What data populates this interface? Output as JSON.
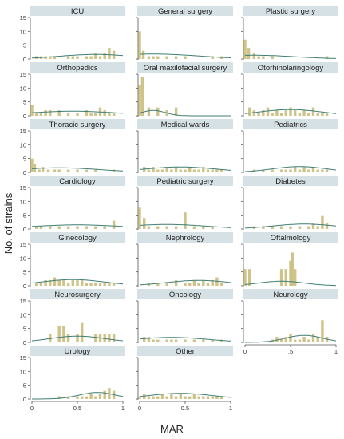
{
  "figure": {
    "ylabel": "No. of strains",
    "xlabel": "MAR",
    "colors": {
      "bar": "#c9bc7c",
      "curve": "#3f7d73",
      "header_bg": "#d6e1e6",
      "axis": "#555555"
    }
  },
  "chart_data": [
    {
      "type": "bar",
      "title": "ICU",
      "x": [
        0.05,
        0.1,
        0.15,
        0.2,
        0.25,
        0.3,
        0.35,
        0.4,
        0.45,
        0.5,
        0.55,
        0.6,
        0.65,
        0.7,
        0.75,
        0.8,
        0.85,
        0.9
      ],
      "values": [
        1,
        1,
        1,
        1,
        1,
        0,
        0,
        1,
        1,
        1,
        0,
        1,
        1,
        2,
        1,
        2,
        4,
        3
      ],
      "xlim": [
        0,
        1
      ],
      "ylim": [
        0,
        15
      ],
      "ticks": [
        0,
        5,
        10,
        15
      ],
      "curve": {
        "mean": 0.7,
        "sd": 0.4,
        "scale": 0.55
      }
    },
    {
      "type": "bar",
      "title": "General surgery",
      "x": [
        0,
        0.04,
        0.1,
        0.15,
        0.2,
        0.3,
        0.4,
        0.5,
        0.6,
        0.7,
        0.8,
        0.9
      ],
      "values": [
        10,
        3,
        1,
        1,
        1,
        1,
        1,
        1,
        0,
        0,
        1,
        1
      ],
      "xlim": [
        0,
        1
      ],
      "ylim": [
        0,
        15
      ],
      "ticks": [
        0,
        5,
        10,
        15
      ],
      "curve": {
        "mean": 0.15,
        "sd": 0.5,
        "scale": 0.6
      }
    },
    {
      "type": "bar",
      "title": "Plastic surgery",
      "x": [
        0,
        0.04,
        0.1,
        0.15,
        0.2,
        0.3,
        0.5,
        0.7,
        0.9
      ],
      "values": [
        7,
        4,
        2,
        1,
        1,
        1,
        0,
        0,
        1
      ],
      "xlim": [
        0,
        1
      ],
      "ylim": [
        0,
        15
      ],
      "ticks": [
        0,
        5,
        10,
        15
      ],
      "curve": {
        "mean": 0.1,
        "sd": 0.45,
        "scale": 0.45
      }
    },
    {
      "type": "bar",
      "title": "Orthopedics",
      "x": [
        0,
        0.05,
        0.1,
        0.15,
        0.2,
        0.3,
        0.4,
        0.5,
        0.6,
        0.65,
        0.7,
        0.75,
        0.8,
        0.85,
        0.9
      ],
      "values": [
        4,
        1,
        1,
        2,
        2,
        2,
        1,
        1,
        2,
        1,
        1,
        3,
        2,
        1,
        1
      ],
      "xlim": [
        0,
        1
      ],
      "ylim": [
        0,
        15
      ],
      "ticks": [
        0,
        5,
        10,
        15
      ],
      "curve": {
        "mean": 0.45,
        "sd": 0.5,
        "scale": 0.55
      }
    },
    {
      "type": "bar",
      "title": "Oral maxilofacial surgery",
      "x": [
        0,
        0.03,
        0.1,
        0.2,
        0.3,
        0.4,
        0.5
      ],
      "values": [
        11,
        14,
        3,
        3,
        2,
        3,
        0
      ],
      "xlim": [
        0,
        1
      ],
      "ylim": [
        0,
        15
      ],
      "ticks": [
        0,
        5,
        10,
        15
      ],
      "curve": {
        "mean": 0.15,
        "sd": 0.13,
        "scale": 0.65
      }
    },
    {
      "type": "bar",
      "title": "Otorhinolaringology",
      "x": [
        0.05,
        0.1,
        0.15,
        0.2,
        0.25,
        0.3,
        0.35,
        0.4,
        0.45,
        0.5,
        0.55,
        0.6,
        0.65,
        0.7,
        0.75,
        0.8,
        0.85,
        0.9
      ],
      "values": [
        3,
        2,
        1,
        2,
        3,
        1,
        2,
        1,
        2,
        3,
        2,
        1,
        2,
        1,
        3,
        1,
        1,
        1
      ],
      "xlim": [
        0,
        1
      ],
      "ylim": [
        0,
        15
      ],
      "ticks": [
        0,
        5,
        10,
        15
      ],
      "curve": {
        "mean": 0.5,
        "sd": 0.35,
        "scale": 0.75
      }
    },
    {
      "type": "bar",
      "title": "Thoracic surgery",
      "x": [
        0,
        0.03,
        0.08,
        0.12,
        0.18,
        0.25,
        0.3,
        0.4,
        0.5,
        0.6,
        0.7,
        0.8,
        0.9
      ],
      "values": [
        5,
        3,
        1,
        2,
        1,
        1,
        1,
        1,
        1,
        1,
        1,
        0,
        1
      ],
      "xlim": [
        0,
        1
      ],
      "ylim": [
        0,
        15
      ],
      "ticks": [
        0,
        5,
        10,
        15
      ],
      "curve": {
        "mean": 0.3,
        "sd": 0.45,
        "scale": 0.55
      }
    },
    {
      "type": "bar",
      "title": "Medical wards",
      "x": [
        0.05,
        0.1,
        0.15,
        0.2,
        0.25,
        0.3,
        0.35,
        0.4,
        0.45,
        0.5,
        0.55,
        0.6,
        0.65,
        0.7,
        0.75,
        0.8,
        0.85,
        0.9
      ],
      "values": [
        2,
        1,
        2,
        1,
        1,
        2,
        1,
        2,
        1,
        1,
        2,
        1,
        1,
        2,
        1,
        1,
        1,
        1
      ],
      "xlim": [
        0,
        1
      ],
      "ylim": [
        0,
        15
      ],
      "ticks": [
        0,
        5,
        10,
        15
      ],
      "curve": {
        "mean": 0.45,
        "sd": 0.4,
        "scale": 0.65
      }
    },
    {
      "type": "bar",
      "title": "Pediatrics",
      "x": [
        0.1,
        0.2,
        0.3,
        0.4,
        0.45,
        0.5,
        0.55,
        0.6,
        0.65,
        0.7,
        0.75,
        0.8,
        0.85,
        0.9
      ],
      "values": [
        1,
        1,
        1,
        1,
        1,
        1,
        2,
        1,
        2,
        1,
        2,
        1,
        1,
        1
      ],
      "xlim": [
        0,
        1
      ],
      "ylim": [
        0,
        15
      ],
      "ticks": [
        0,
        5,
        10,
        15
      ],
      "curve": {
        "mean": 0.6,
        "sd": 0.3,
        "scale": 0.7
      }
    },
    {
      "type": "bar",
      "title": "Cardiology",
      "x": [
        0.05,
        0.1,
        0.2,
        0.3,
        0.4,
        0.5,
        0.6,
        0.7,
        0.8,
        0.9
      ],
      "values": [
        1,
        1,
        1,
        1,
        1,
        1,
        1,
        1,
        1,
        3
      ],
      "xlim": [
        0,
        1
      ],
      "ylim": [
        0,
        15
      ],
      "ticks": [
        0,
        5,
        10,
        15
      ],
      "curve": {
        "mean": 0.5,
        "sd": 0.5,
        "scale": 0.5
      }
    },
    {
      "type": "bar",
      "title": "Pediatric surgery",
      "x": [
        0,
        0.05,
        0.1,
        0.2,
        0.3,
        0.4,
        0.5,
        0.6,
        0.7,
        0.8
      ],
      "values": [
        8,
        4,
        1,
        1,
        1,
        1,
        6,
        1,
        1,
        1
      ],
      "xlim": [
        0,
        1
      ],
      "ylim": [
        0,
        15
      ],
      "ticks": [
        0,
        5,
        10,
        15
      ],
      "curve": {
        "mean": 0.3,
        "sd": 0.45,
        "scale": 0.55
      }
    },
    {
      "type": "bar",
      "title": "Diabetes",
      "x": [
        0.1,
        0.2,
        0.3,
        0.4,
        0.5,
        0.6,
        0.7,
        0.75,
        0.8,
        0.85,
        0.9
      ],
      "values": [
        1,
        1,
        1,
        1,
        1,
        1,
        1,
        2,
        1,
        5,
        2
      ],
      "xlim": [
        0,
        1
      ],
      "ylim": [
        0,
        15
      ],
      "ticks": [
        0,
        5,
        10,
        15
      ],
      "curve": {
        "mean": 0.65,
        "sd": 0.35,
        "scale": 0.6
      }
    },
    {
      "type": "bar",
      "title": "Ginecology",
      "x": [
        0.05,
        0.1,
        0.15,
        0.2,
        0.25,
        0.3,
        0.35,
        0.4,
        0.45,
        0.5,
        0.55,
        0.6,
        0.65,
        0.7,
        0.75,
        0.8,
        0.85,
        0.9
      ],
      "values": [
        1,
        1,
        2,
        2,
        3,
        2,
        2,
        1,
        2,
        2,
        2,
        1,
        1,
        1,
        1,
        1,
        1,
        1
      ],
      "xlim": [
        0,
        1
      ],
      "ylim": [
        0,
        15
      ],
      "ticks": [
        0,
        5,
        10,
        15
      ],
      "curve": {
        "mean": 0.45,
        "sd": 0.35,
        "scale": 0.75
      }
    },
    {
      "type": "bar",
      "title": "Nephrology",
      "x": [
        0.1,
        0.2,
        0.3,
        0.4,
        0.5,
        0.55,
        0.6,
        0.65,
        0.7,
        0.75,
        0.8,
        0.85,
        0.9
      ],
      "values": [
        1,
        1,
        1,
        2,
        1,
        1,
        2,
        1,
        2,
        1,
        2,
        3,
        1
      ],
      "xlim": [
        0,
        1
      ],
      "ylim": [
        0,
        15
      ],
      "ticks": [
        0,
        5,
        10,
        15
      ],
      "curve": {
        "mean": 0.65,
        "sd": 0.35,
        "scale": 0.65
      }
    },
    {
      "type": "bar",
      "title": "Oftalmology",
      "x": [
        0,
        0.05,
        0.4,
        0.45,
        0.5,
        0.52,
        0.55
      ],
      "values": [
        6,
        6,
        6,
        6,
        9,
        12,
        6
      ],
      "xlim": [
        0,
        1
      ],
      "ylim": [
        0,
        15
      ],
      "ticks": [
        0,
        5,
        10,
        15
      ],
      "curve": {
        "mean": 0.4,
        "sd": 0.25,
        "scale": 0.55
      }
    },
    {
      "type": "bar",
      "title": "Neurosurgery",
      "x": [
        0.2,
        0.3,
        0.35,
        0.4,
        0.5,
        0.55,
        0.7,
        0.75,
        0.8,
        0.85,
        0.9
      ],
      "values": [
        3,
        6,
        6,
        3,
        3,
        7,
        3,
        3,
        3,
        3,
        3
      ],
      "xlim": [
        0,
        1
      ],
      "ylim": [
        0,
        15
      ],
      "ticks": [
        0,
        5,
        10,
        15
      ],
      "curve": {
        "mean": 0.5,
        "sd": 0.3,
        "scale": 0.75
      }
    },
    {
      "type": "bar",
      "title": "Oncology",
      "x": [
        0.05,
        0.1,
        0.15,
        0.2,
        0.3,
        0.35,
        0.4,
        0.5,
        0.6,
        0.7,
        0.8,
        0.9
      ],
      "values": [
        2,
        2,
        1,
        1,
        1,
        1,
        1,
        1,
        1,
        1,
        1,
        1
      ],
      "xlim": [
        0,
        1
      ],
      "ylim": [
        0,
        15
      ],
      "ticks": [
        0,
        5,
        10,
        15
      ],
      "curve": {
        "mean": 0.35,
        "sd": 0.4,
        "scale": 0.6
      }
    },
    {
      "type": "bar",
      "title": "Neurology",
      "x": [
        0.3,
        0.35,
        0.4,
        0.45,
        0.5,
        0.55,
        0.6,
        0.65,
        0.7,
        0.75,
        0.8,
        0.85,
        0.9
      ],
      "values": [
        1,
        2,
        1,
        2,
        3,
        1,
        1,
        2,
        1,
        3,
        2,
        8,
        2
      ],
      "xlim": [
        0,
        1
      ],
      "ylim": [
        0,
        15
      ],
      "ticks": [
        0,
        5,
        10,
        15
      ],
      "xticks": [
        "0",
        ".5",
        "1"
      ],
      "curve": {
        "mean": 0.65,
        "sd": 0.2,
        "scale": 0.85
      }
    },
    {
      "type": "bar",
      "title": "Urology",
      "x": [
        0.3,
        0.4,
        0.5,
        0.55,
        0.6,
        0.65,
        0.7,
        0.75,
        0.8,
        0.85,
        0.9
      ],
      "values": [
        1,
        1,
        1,
        1,
        1,
        2,
        1,
        2,
        3,
        4,
        3
      ],
      "xlim": [
        0,
        1
      ],
      "ylim": [
        0,
        15
      ],
      "ticks": [
        0,
        5,
        10,
        15
      ],
      "xticks": [
        "0",
        "0.5",
        "1"
      ],
      "curve": {
        "mean": 0.72,
        "sd": 0.2,
        "scale": 0.8
      }
    },
    {
      "type": "bar",
      "title": "Other",
      "x": [
        0,
        0.05,
        0.1,
        0.15,
        0.2,
        0.25,
        0.3,
        0.35,
        0.4,
        0.45,
        0.5,
        0.55,
        0.6,
        0.65,
        0.7,
        0.75,
        0.8,
        0.85,
        0.9
      ],
      "values": [
        1,
        2,
        1,
        1,
        1,
        2,
        1,
        2,
        1,
        2,
        1,
        1,
        2,
        1,
        1,
        1,
        1,
        1,
        1
      ],
      "xlim": [
        0,
        1
      ],
      "ylim": [
        0,
        15
      ],
      "ticks": [
        0,
        5,
        10,
        15
      ],
      "xticks": [
        "0",
        "0.5",
        "1"
      ],
      "curve": {
        "mean": 0.45,
        "sd": 0.35,
        "scale": 0.7
      }
    }
  ]
}
